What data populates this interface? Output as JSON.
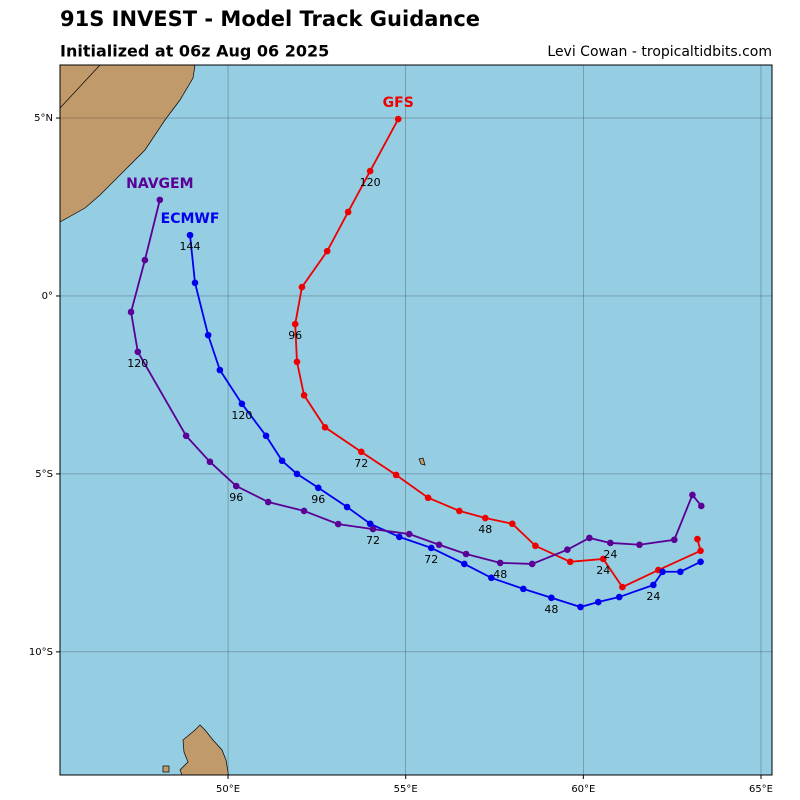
{
  "chart_data": {
    "type": "line",
    "title": "91S INVEST - Model Track Guidance",
    "subtitle": "Initialized at 06z Aug 06 2025",
    "credit": "Levi Cowan - tropicaltidbits.com",
    "xlim": [
      45.27,
      65.31
    ],
    "ylim": [
      -13.46,
      6.49
    ],
    "xticks": [
      {
        "value": 50,
        "label": "50°E"
      },
      {
        "value": 55,
        "label": "55°E"
      },
      {
        "value": 60,
        "label": "60°E"
      },
      {
        "value": 65,
        "label": "65°E"
      }
    ],
    "yticks": [
      {
        "value": 5,
        "label": "5°N"
      },
      {
        "value": 0,
        "label": "0°"
      },
      {
        "value": -5,
        "label": "5°S"
      },
      {
        "value": -10,
        "label": "10°S"
      }
    ],
    "grid": true,
    "series": [
      {
        "name": "GFS",
        "color": "#ee0000",
        "x": [
          63.21,
          63.3,
          62.11,
          61.1,
          60.56,
          59.63,
          58.65,
          58.0,
          57.24,
          56.51,
          55.63,
          54.73,
          53.75,
          52.73,
          52.14,
          51.94,
          51.89,
          52.08,
          52.79,
          53.38,
          54.0,
          54.79
        ],
        "values": [
          -6.83,
          -7.16,
          -7.7,
          -8.18,
          -7.39,
          -7.47,
          -7.02,
          -6.4,
          -6.24,
          -6.04,
          -5.67,
          -5.03,
          -4.38,
          -3.69,
          -2.79,
          -1.85,
          -0.79,
          0.25,
          1.26,
          2.36,
          3.51,
          4.97
        ],
        "hour_labels": [
          null,
          null,
          null,
          null,
          24,
          null,
          null,
          null,
          48,
          null,
          null,
          null,
          72,
          null,
          null,
          null,
          96,
          null,
          null,
          null,
          120,
          null
        ]
      },
      {
        "name": "ECMWF",
        "color": "#0000ee",
        "x": [
          63.3,
          62.73,
          62.23,
          61.97,
          61.01,
          60.42,
          59.92,
          59.1,
          58.31,
          57.41,
          56.65,
          55.72,
          54.82,
          54.0,
          53.35,
          52.54,
          51.94,
          51.52,
          51.07,
          50.39,
          49.77,
          49.44,
          49.07,
          48.93
        ],
        "values": [
          -7.47,
          -7.75,
          -7.75,
          -8.12,
          -8.46,
          -8.6,
          -8.74,
          -8.48,
          -8.23,
          -7.92,
          -7.53,
          -7.08,
          -6.77,
          -6.4,
          -5.93,
          -5.39,
          -5.0,
          -4.63,
          -3.93,
          -3.03,
          -2.08,
          -1.1,
          0.37,
          1.71
        ],
        "hour_labels": [
          null,
          null,
          null,
          24,
          null,
          null,
          null,
          48,
          null,
          null,
          null,
          72,
          null,
          null,
          null,
          96,
          null,
          null,
          null,
          120,
          null,
          null,
          null,
          144
        ]
      },
      {
        "name": "NAVGEM",
        "color": "#5a0096",
        "x": [
          63.32,
          63.07,
          62.56,
          61.58,
          60.76,
          60.17,
          59.55,
          58.56,
          57.66,
          56.7,
          55.94,
          55.1,
          54.08,
          53.1,
          52.14,
          51.13,
          50.23,
          49.49,
          48.82,
          47.46,
          47.27,
          47.66,
          48.08
        ],
        "values": [
          -5.9,
          -5.59,
          -6.85,
          -6.99,
          -6.94,
          -6.8,
          -7.13,
          -7.53,
          -7.5,
          -7.25,
          -6.99,
          -6.69,
          -6.55,
          -6.41,
          -6.04,
          -5.79,
          -5.34,
          -4.66,
          -3.93,
          -1.57,
          -0.45,
          1.01,
          2.7
        ],
        "hour_labels": [
          null,
          null,
          null,
          null,
          24,
          null,
          null,
          null,
          48,
          null,
          null,
          null,
          72,
          null,
          null,
          null,
          96,
          null,
          null,
          120,
          null,
          null,
          null
        ]
      }
    ]
  }
}
